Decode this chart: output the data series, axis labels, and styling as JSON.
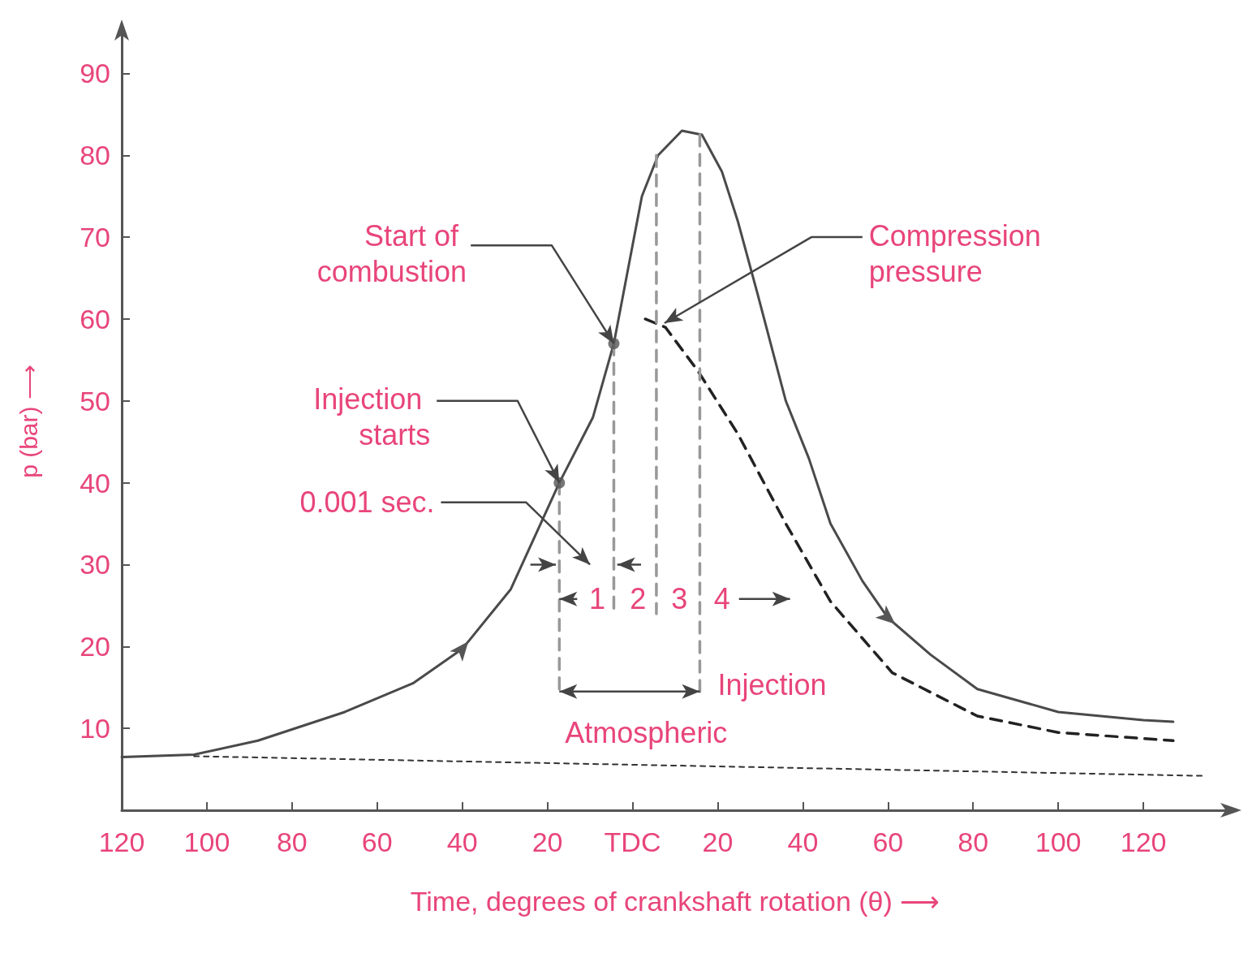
{
  "chart_data": {
    "type": "line",
    "xlabel": "Time, degrees of crankshaft rotation (θ) ⟶",
    "ylabel": "p (bar) ⟶",
    "xlim": [
      -120,
      140
    ],
    "ylim": [
      0,
      95
    ],
    "xticks": [
      {
        "value": -120,
        "label": "120"
      },
      {
        "value": -100,
        "label": "100"
      },
      {
        "value": -80,
        "label": "80"
      },
      {
        "value": -60,
        "label": "60"
      },
      {
        "value": -40,
        "label": "40"
      },
      {
        "value": -20,
        "label": "20"
      },
      {
        "value": 0,
        "label": "TDC"
      },
      20,
      40,
      60,
      80,
      100,
      120
    ],
    "yticks": [
      10,
      20,
      30,
      40,
      50,
      60,
      70,
      80,
      90
    ],
    "grid": false,
    "series": [
      {
        "type": "line",
        "color": "#4a4a4a",
        "line_style": "solid",
        "marker": "none",
        "x": [
          -120,
          -103,
          -88,
          -67.6,
          -51.6,
          -40,
          -28.6,
          -17.2,
          -9.3,
          -4.4,
          2.2,
          6,
          11.6,
          16.3,
          21,
          24.7,
          29.4,
          36,
          41.4,
          46.5,
          54,
          60,
          70,
          81,
          100,
          120,
          127
        ],
        "values": [
          6.5,
          6.8,
          8.5,
          12,
          15.5,
          19.7,
          27,
          40,
          48,
          57,
          75,
          80,
          83,
          82.5,
          78,
          72,
          63,
          50,
          43,
          35,
          28,
          23.5,
          19,
          14.8,
          12,
          11,
          10.8
        ]
      },
      {
        "type": "line",
        "color": "#222222",
        "line_style": "dashed",
        "marker": "none",
        "x": [
          3,
          7.7,
          15.3,
          24.7,
          36,
          46.5,
          61,
          81,
          100,
          127
        ],
        "values": [
          60,
          59,
          53.7,
          46,
          35,
          25.5,
          16.8,
          11.5,
          9.5,
          8.5
        ]
      },
      {
        "type": "line",
        "color": "#333333",
        "line_style": "dotted",
        "marker": "none",
        "x": [
          -103,
          134
        ],
        "values": [
          6.6,
          4.2
        ]
      },
      {
        "type": "line",
        "color": "#999999",
        "line_style": "dashed",
        "marker": "none",
        "x": [
          -17.2,
          -17.2
        ],
        "values": [
          40,
          14
        ]
      },
      {
        "type": "line",
        "color": "#999999",
        "line_style": "dashed",
        "marker": "none",
        "x": [
          -4.4,
          -4.4
        ],
        "values": [
          57,
          24
        ]
      },
      {
        "type": "line",
        "color": "#999999",
        "line_style": "dashed",
        "marker": "none",
        "x": [
          5.6,
          5.6
        ],
        "values": [
          80,
          24
        ]
      },
      {
        "type": "line",
        "color": "#999999",
        "line_style": "dashed",
        "marker": "none",
        "x": [
          15.8,
          15.8
        ],
        "values": [
          82.5,
          14
        ]
      },
      {
        "type": "scatter",
        "color": "#555555",
        "marker": "circle",
        "x": [
          -17.2,
          -4.4
        ],
        "values": [
          40,
          57
        ]
      }
    ],
    "annotations": [
      {
        "text": "Start of combustion",
        "x": -4.4,
        "y": 57
      },
      {
        "text": "Injection starts",
        "x": -17.2,
        "y": 40
      },
      "0.001 sec.",
      {
        "text": "Compression pressure",
        "x": 7.5,
        "y": 59.5
      },
      "1",
      "2",
      "3",
      "4",
      "Injection",
      "Atmospheric"
    ]
  }
}
